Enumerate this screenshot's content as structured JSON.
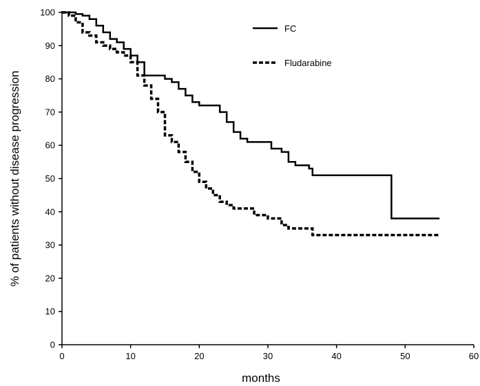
{
  "chart_data": {
    "type": "line",
    "title": "",
    "xlabel": "months",
    "ylabel": "% of patients without disease progression",
    "xlim": [
      0,
      60
    ],
    "ylim": [
      0,
      100
    ],
    "xticks": [
      0,
      10,
      20,
      30,
      40,
      50,
      60
    ],
    "yticks": [
      0,
      10,
      20,
      30,
      40,
      50,
      60,
      70,
      80,
      90,
      100
    ],
    "grid": false,
    "legend": "top-right",
    "series": [
      {
        "name": "FC",
        "style": "solid",
        "color": "#000000",
        "step": true,
        "points": [
          [
            0,
            100
          ],
          [
            1,
            100
          ],
          [
            2,
            99.5
          ],
          [
            3,
            99
          ],
          [
            4,
            98
          ],
          [
            5,
            96
          ],
          [
            6,
            94
          ],
          [
            7,
            92
          ],
          [
            8,
            91
          ],
          [
            9,
            89
          ],
          [
            10,
            87
          ],
          [
            11,
            85
          ],
          [
            12,
            81
          ],
          [
            14,
            81
          ],
          [
            15,
            80
          ],
          [
            16,
            79
          ],
          [
            17,
            77
          ],
          [
            18,
            75
          ],
          [
            19,
            73
          ],
          [
            20,
            72
          ],
          [
            22,
            72
          ],
          [
            23,
            70
          ],
          [
            24,
            67
          ],
          [
            25,
            64
          ],
          [
            26,
            62
          ],
          [
            27,
            61
          ],
          [
            30,
            61
          ],
          [
            30.5,
            59
          ],
          [
            32,
            58
          ],
          [
            33,
            55
          ],
          [
            34,
            54
          ],
          [
            36,
            53
          ],
          [
            36.5,
            51
          ],
          [
            48,
            51
          ],
          [
            48,
            38
          ],
          [
            55,
            38
          ]
        ]
      },
      {
        "name": "Fludarabine",
        "style": "dashed",
        "color": "#000000",
        "step": true,
        "points": [
          [
            0,
            100
          ],
          [
            1,
            99
          ],
          [
            2,
            97
          ],
          [
            3,
            94
          ],
          [
            4,
            93
          ],
          [
            5,
            91
          ],
          [
            6,
            90
          ],
          [
            7,
            89
          ],
          [
            8,
            88
          ],
          [
            9,
            87
          ],
          [
            10,
            85
          ],
          [
            11,
            81
          ],
          [
            12,
            78
          ],
          [
            13,
            74
          ],
          [
            14,
            70
          ],
          [
            15,
            63
          ],
          [
            16,
            61
          ],
          [
            17,
            58
          ],
          [
            18,
            55
          ],
          [
            19,
            52
          ],
          [
            20,
            49
          ],
          [
            21,
            47
          ],
          [
            22,
            45
          ],
          [
            23,
            43
          ],
          [
            24,
            42
          ],
          [
            25,
            41
          ],
          [
            28,
            39
          ],
          [
            30,
            38
          ],
          [
            32,
            36
          ],
          [
            33,
            35
          ],
          [
            36.5,
            35
          ],
          [
            36.5,
            33
          ],
          [
            55,
            33
          ]
        ]
      }
    ]
  }
}
